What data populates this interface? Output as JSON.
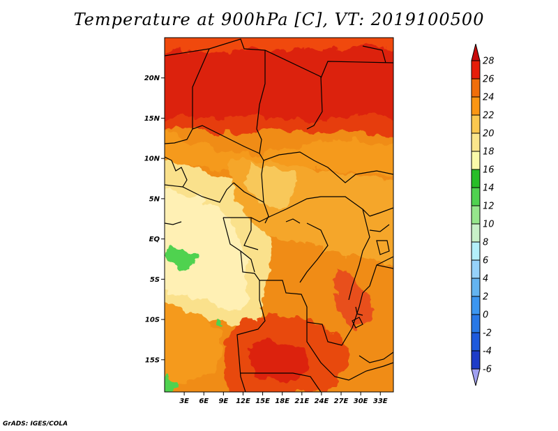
{
  "title": "Temperature at 900hPa [C], VT: 2019100500",
  "credit": "GrADS: IGES/COLA",
  "map": {
    "lat_range": [
      -19,
      25
    ],
    "lon_range": [
      0,
      35
    ],
    "lat_ticks": [
      {
        "value": 20,
        "label": "20N"
      },
      {
        "value": 15,
        "label": "15N"
      },
      {
        "value": 10,
        "label": "10N"
      },
      {
        "value": 5,
        "label": "5N"
      },
      {
        "value": 0,
        "label": "EQ"
      },
      {
        "value": -5,
        "label": "5S"
      },
      {
        "value": -10,
        "label": "10S"
      },
      {
        "value": -15,
        "label": "15S"
      }
    ],
    "lon_ticks": [
      {
        "value": 3,
        "label": "3E"
      },
      {
        "value": 6,
        "label": "6E"
      },
      {
        "value": 9,
        "label": "9E"
      },
      {
        "value": 12,
        "label": "12E"
      },
      {
        "value": 15,
        "label": "15E"
      },
      {
        "value": 18,
        "label": "18E"
      },
      {
        "value": 21,
        "label": "21E"
      },
      {
        "value": 24,
        "label": "24E"
      },
      {
        "value": 27,
        "label": "27E"
      },
      {
        "value": 30,
        "label": "30E"
      },
      {
        "value": 33,
        "label": "33E"
      }
    ]
  },
  "colorbar": {
    "levels": [
      "-6",
      "-4",
      "-2",
      "0",
      "2",
      "4",
      "6",
      "8",
      "10",
      "12",
      "14",
      "16",
      "18",
      "20",
      "22",
      "24",
      "26",
      "28"
    ],
    "colors": [
      "#a0a0f0",
      "#1e1e8c",
      "#1e3cc8",
      "#1e5adc",
      "#2878e6",
      "#3c96f0",
      "#64b4f0",
      "#96d2fa",
      "#b4f0fa",
      "#c8f0c8",
      "#96e68c",
      "#50d250",
      "#28be28",
      "#fafaaa",
      "#fae68c",
      "#fac850",
      "#fa9614",
      "#f06e0a",
      "#e61e0a",
      "#c80a0a"
    ]
  }
}
